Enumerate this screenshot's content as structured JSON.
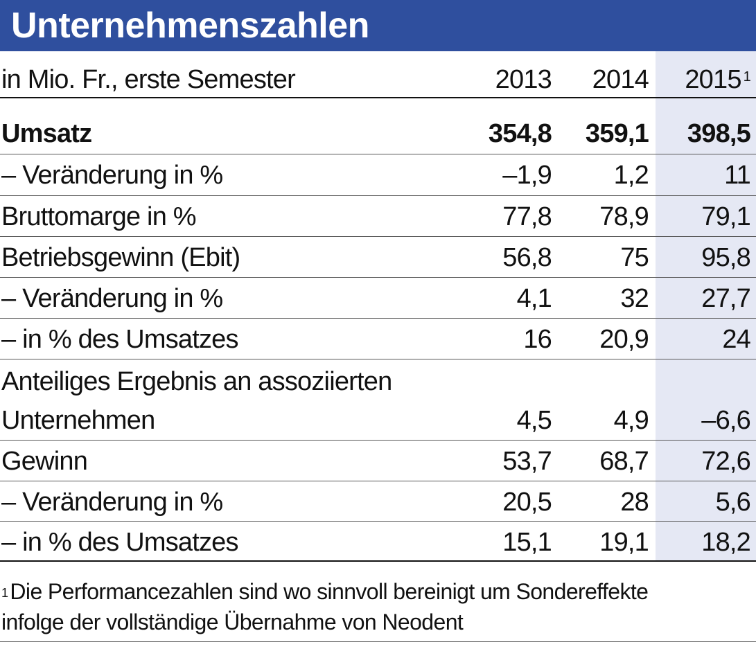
{
  "title": "Unternehmenszahlen",
  "colors": {
    "title_bar": "#2f4f9e",
    "title_text": "#ffffff",
    "highlight_column": "#e5e8f4",
    "text": "#111111"
  },
  "header": {
    "unit_label": "in Mio. Fr., erste Semester",
    "years": [
      "2013",
      "2014",
      "2015"
    ],
    "footnote_marker": "1"
  },
  "rows": [
    {
      "label": "Umsatz",
      "values": [
        "354,8",
        "359,1",
        "398,5"
      ],
      "bold": true
    },
    {
      "label": "– Veränderung in %",
      "values": [
        "–1,9",
        "1,2",
        "11"
      ]
    },
    {
      "label": "Bruttomarge in %",
      "values": [
        "77,8",
        "78,9",
        "79,1"
      ]
    },
    {
      "label": "Betriebsgewinn (Ebit)",
      "values": [
        "56,8",
        "75",
        "95,8"
      ]
    },
    {
      "label": "– Veränderung in %",
      "values": [
        "4,1",
        "32",
        "27,7"
      ]
    },
    {
      "label": "– in % des Umsatzes",
      "values": [
        "16",
        "20,9",
        "24"
      ]
    },
    {
      "label": "Anteiliges Ergebnis an assoziierten",
      "label_line2": "Unternehmen",
      "values": [
        "4,5",
        "4,9",
        "–6,6"
      ]
    },
    {
      "label": "Gewinn",
      "values": [
        "53,7",
        "68,7",
        "72,6"
      ]
    },
    {
      "label": "– Veränderung in %",
      "values": [
        "20,5",
        "28",
        "5,6"
      ]
    },
    {
      "label": "– in % des Umsatzes",
      "values": [
        "15,1",
        "19,1",
        "18,2"
      ]
    }
  ],
  "footnote": {
    "marker": "1",
    "line1": "Die Performancezahlen sind wo sinnvoll bereinigt um Sondereffekte",
    "line2": "infolge der vollständige Übernahme von Neodent"
  },
  "chart_data": {
    "type": "table",
    "title": "Unternehmenszahlen",
    "subtitle": "in Mio. Fr., erste Semester",
    "columns": [
      "2013",
      "2014",
      "2015"
    ],
    "rows": [
      {
        "label": "Umsatz",
        "values": [
          354.8,
          359.1,
          398.5
        ]
      },
      {
        "label": "– Veränderung in %",
        "values": [
          -1.9,
          1.2,
          11
        ]
      },
      {
        "label": "Bruttomarge in %",
        "values": [
          77.8,
          78.9,
          79.1
        ]
      },
      {
        "label": "Betriebsgewinn (Ebit)",
        "values": [
          56.8,
          75,
          95.8
        ]
      },
      {
        "label": "– Veränderung in %",
        "values": [
          4.1,
          32,
          27.7
        ]
      },
      {
        "label": "– in % des Umsatzes",
        "values": [
          16,
          20.9,
          24
        ]
      },
      {
        "label": "Anteiliges Ergebnis an assoziierten Unternehmen",
        "values": [
          4.5,
          4.9,
          -6.6
        ]
      },
      {
        "label": "Gewinn",
        "values": [
          53.7,
          68.7,
          72.6
        ]
      },
      {
        "label": "– Veränderung in %",
        "values": [
          20.5,
          28,
          5.6
        ]
      },
      {
        "label": "– in % des Umsatzes",
        "values": [
          15.1,
          19.1,
          18.2
        ]
      }
    ]
  }
}
